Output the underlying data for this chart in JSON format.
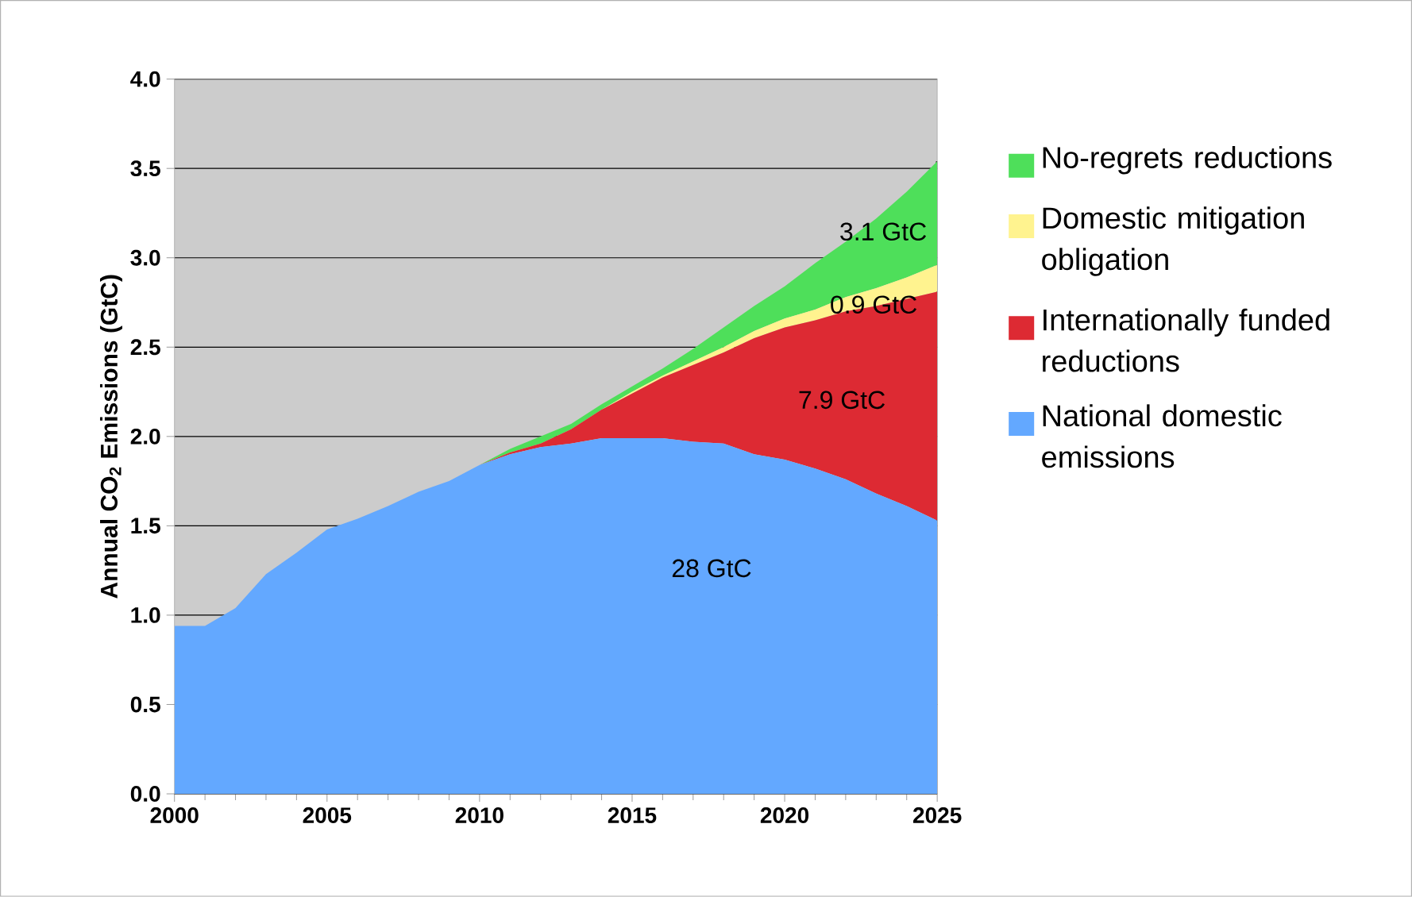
{
  "chart_data": {
    "type": "area",
    "stacked": true,
    "ylabel": "Annual CO$_{2}$ Emissions (GtC)",
    "x": [
      2000,
      2001,
      2002,
      2003,
      2004,
      2005,
      2006,
      2007,
      2008,
      2009,
      2010,
      2011,
      2012,
      2013,
      2014,
      2015,
      2016,
      2017,
      2018,
      2019,
      2020,
      2021,
      2022,
      2023,
      2024,
      2025
    ],
    "series": [
      {
        "name": "National domestic emissions",
        "color": "#63a8ff",
        "values": [
          0.94,
          0.94,
          1.04,
          1.23,
          1.35,
          1.48,
          1.54,
          1.61,
          1.69,
          1.75,
          1.84,
          1.9,
          1.94,
          1.96,
          1.99,
          1.99,
          1.99,
          1.97,
          1.96,
          1.9,
          1.87,
          1.82,
          1.76,
          1.68,
          1.61,
          1.53
        ]
      },
      {
        "name": "Internationally funded reductions",
        "color": "#dd2a33",
        "values": [
          0,
          0,
          0,
          0,
          0,
          0,
          0,
          0,
          0,
          0,
          0,
          0.01,
          0.02,
          0.08,
          0.16,
          0.25,
          0.34,
          0.43,
          0.51,
          0.65,
          0.74,
          0.83,
          0.94,
          1.05,
          1.16,
          1.28
        ]
      },
      {
        "name": "Domestic mitigation obligation",
        "color": "#fff38f",
        "values": [
          0,
          0,
          0,
          0,
          0,
          0,
          0,
          0,
          0,
          0,
          0,
          0,
          0,
          0,
          0,
          0.01,
          0.01,
          0.02,
          0.03,
          0.04,
          0.05,
          0.06,
          0.08,
          0.1,
          0.12,
          0.15
        ]
      },
      {
        "name": "No-regrets reductions",
        "color": "#4edf5a",
        "values": [
          0,
          0,
          0,
          0,
          0,
          0,
          0,
          0,
          0,
          0,
          0,
          0.02,
          0.04,
          0.03,
          0.03,
          0.03,
          0.04,
          0.07,
          0.11,
          0.14,
          0.18,
          0.26,
          0.31,
          0.39,
          0.48,
          0.58
        ]
      }
    ],
    "xlim": [
      2000,
      2025
    ],
    "ylim": [
      0,
      4
    ],
    "xticks": [
      2000,
      2005,
      2010,
      2015,
      2020,
      2025
    ],
    "yticks": [
      {
        "value": 0,
        "label": "0.0"
      },
      0.5,
      {
        "value": 1,
        "label": "1.0"
      },
      1.5,
      {
        "value": 2,
        "label": "2.0"
      },
      2.5,
      {
        "value": 3,
        "label": "3.0"
      },
      3.5,
      {
        "value": 4,
        "label": "4.0"
      }
    ],
    "grid": "y",
    "legend": "right",
    "annotations": [
      "28 GtC",
      "7.9 GtC",
      "0.9 GtC",
      "3.1 GtC"
    ]
  }
}
